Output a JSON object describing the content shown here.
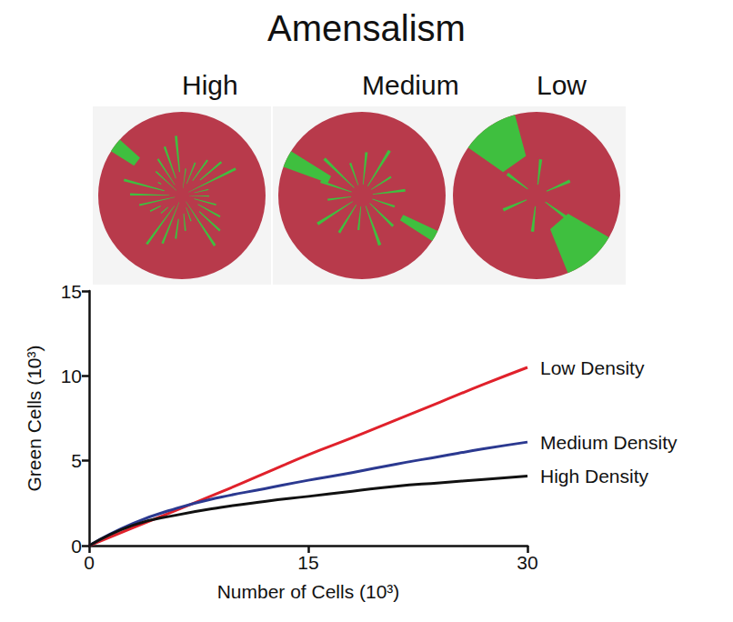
{
  "figure_title": "Amensalism",
  "panel_labels": [
    "High",
    "Medium",
    "Low"
  ],
  "chart_data": {
    "type": "line",
    "x_label": "Number of Cells (10³)",
    "y_label": "Green Cells (10³)",
    "x": [
      0,
      3,
      6,
      9,
      12,
      15,
      18,
      21,
      24,
      27,
      30
    ],
    "series": [
      {
        "name": "Low Density",
        "color": "#e0212b",
        "values": [
          0,
          1.05,
          2.1,
          3.15,
          4.25,
          5.35,
          6.35,
          7.4,
          8.45,
          9.5,
          10.5
        ]
      },
      {
        "name": "Medium Density",
        "color": "#2b3990",
        "values": [
          0,
          1.3,
          2.2,
          2.85,
          3.35,
          3.85,
          4.3,
          4.8,
          5.25,
          5.7,
          6.1
        ]
      },
      {
        "name": "High Density",
        "color": "#111111",
        "values": [
          0,
          1.2,
          1.8,
          2.25,
          2.6,
          2.9,
          3.2,
          3.5,
          3.7,
          3.9,
          4.1
        ]
      }
    ],
    "xlim": [
      0,
      30
    ],
    "xticks": [
      0,
      15,
      30
    ],
    "ylim": [
      0,
      15
    ],
    "yticks": [
      0,
      5,
      10,
      15
    ],
    "grid": false,
    "marker": "none",
    "line_style": "solid"
  }
}
